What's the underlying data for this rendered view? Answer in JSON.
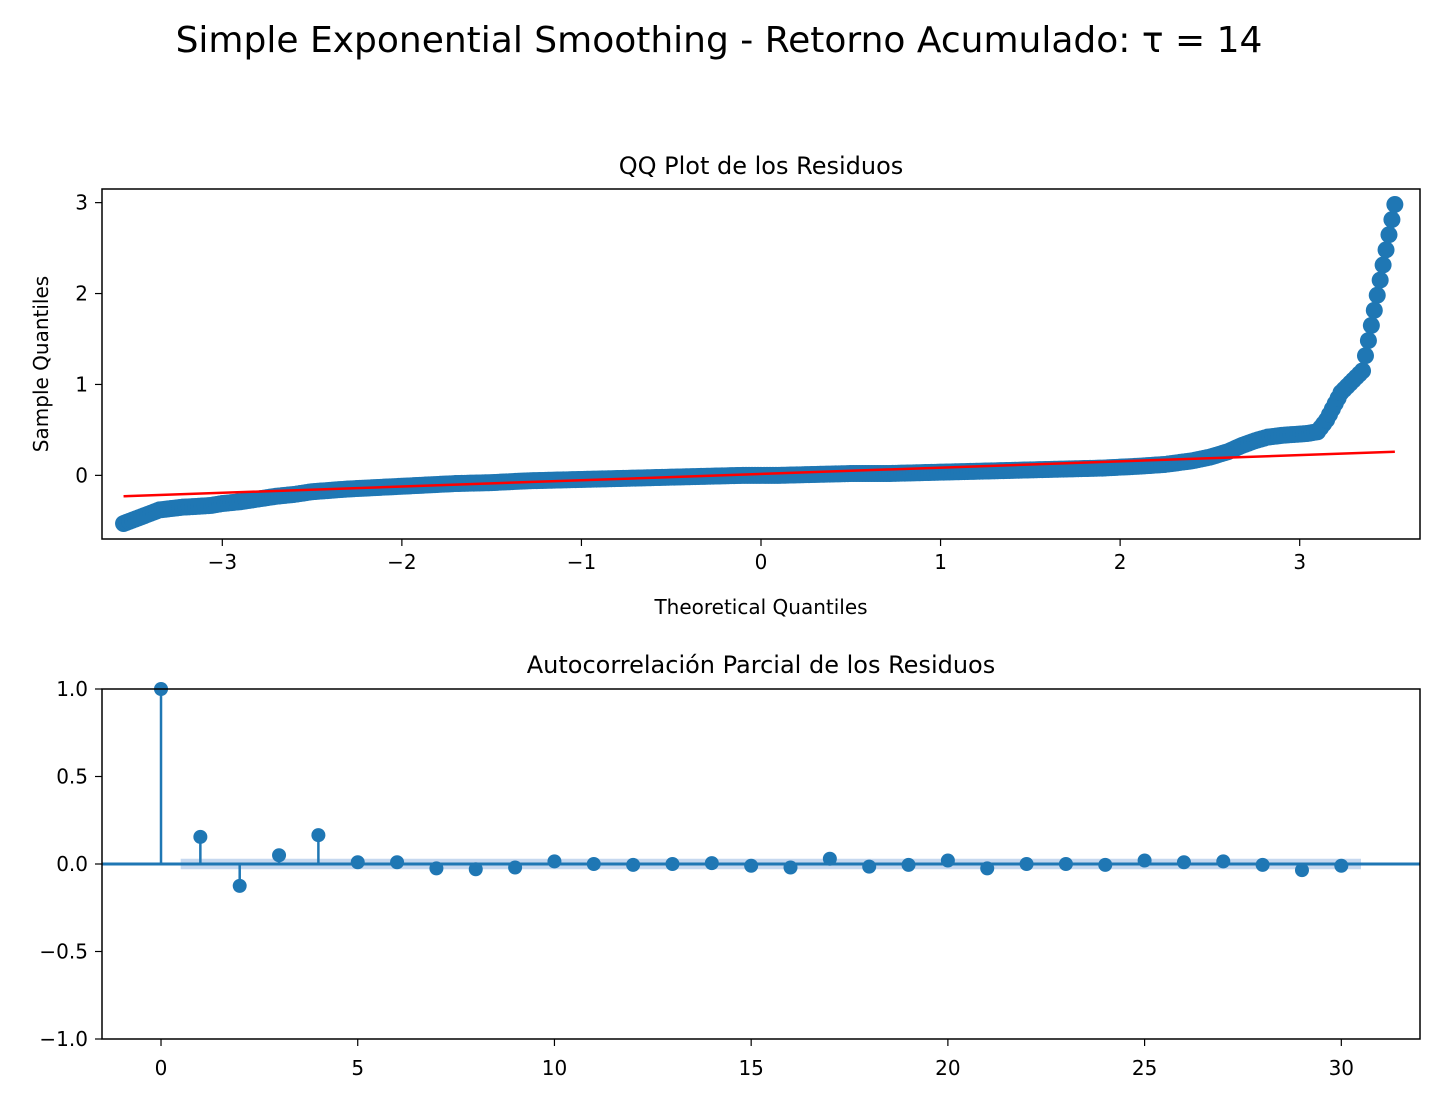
{
  "figure_title": "Simple Exponential Smoothing - Retorno Acumulado: τ = 14",
  "colors": {
    "points": "#1f77b4",
    "line": "#ff0000",
    "band": "#aec7e8"
  },
  "chart_data": [
    {
      "type": "scatter",
      "title": "QQ Plot de los Residuos",
      "xlabel": "Theoretical Quantiles",
      "ylabel": "Sample Quantiles",
      "xlim": [
        -3.67,
        3.67
      ],
      "ylim": [
        -0.7,
        3.15
      ],
      "xticks": [
        -3,
        -2,
        -1,
        0,
        1,
        2,
        3
      ],
      "xtick_labels": [
        "−3",
        "−2",
        "−1",
        "0",
        "1",
        "2",
        "3"
      ],
      "yticks": [
        0,
        1,
        2,
        3
      ],
      "ytick_labels": [
        "0",
        "1",
        "2",
        "3"
      ],
      "series": [
        {
          "points": [
            [
              -3.55,
              -0.53
            ],
            [
              -3.35,
              -0.38
            ],
            [
              -3.22,
              -0.35
            ],
            [
              -3.13,
              -0.34
            ],
            [
              -3.06,
              -0.33
            ],
            [
              -3.0,
              -0.31
            ],
            [
              -2.9,
              -0.29
            ],
            [
              -2.8,
              -0.26
            ],
            [
              -2.7,
              -0.23
            ],
            [
              -2.6,
              -0.21
            ],
            [
              -2.5,
              -0.18
            ],
            [
              -2.3,
              -0.15
            ],
            [
              -2.1,
              -0.13
            ],
            [
              -1.9,
              -0.11
            ],
            [
              -1.7,
              -0.09
            ],
            [
              -1.5,
              -0.08
            ],
            [
              -1.3,
              -0.06
            ],
            [
              -1.1,
              -0.05
            ],
            [
              -0.9,
              -0.04
            ],
            [
              -0.7,
              -0.03
            ],
            [
              -0.5,
              -0.02
            ],
            [
              -0.3,
              -0.01
            ],
            [
              -0.1,
              0.0
            ],
            [
              0.1,
              0.0
            ],
            [
              0.3,
              0.01
            ],
            [
              0.5,
              0.02
            ],
            [
              0.7,
              0.02
            ],
            [
              0.9,
              0.03
            ],
            [
              1.1,
              0.04
            ],
            [
              1.3,
              0.05
            ],
            [
              1.5,
              0.06
            ],
            [
              1.7,
              0.07
            ],
            [
              1.9,
              0.08
            ],
            [
              2.1,
              0.1
            ],
            [
              2.25,
              0.12
            ],
            [
              2.4,
              0.16
            ],
            [
              2.5,
              0.2
            ],
            [
              2.6,
              0.26
            ],
            [
              2.68,
              0.33
            ],
            [
              2.75,
              0.38
            ],
            [
              2.82,
              0.42
            ],
            [
              2.9,
              0.44
            ],
            [
              2.97,
              0.45
            ],
            [
              3.04,
              0.46
            ],
            [
              3.1,
              0.48
            ],
            [
              3.15,
              0.61
            ],
            [
              3.23,
              0.91
            ],
            [
              3.35,
              1.15
            ],
            [
              3.53,
              2.98
            ]
          ]
        }
      ],
      "reference_line": {
        "x": [
          -3.55,
          3.53
        ],
        "y": [
          -0.23,
          0.26
        ]
      }
    },
    {
      "type": "stem",
      "title": "Autocorrelación Parcial de los Residuos",
      "xlim": [
        -1.5,
        32.0
      ],
      "ylim": [
        -1.0,
        1.0
      ],
      "xticks": [
        0,
        5,
        10,
        15,
        20,
        25,
        30
      ],
      "xtick_labels": [
        "0",
        "5",
        "10",
        "15",
        "20",
        "25",
        "30"
      ],
      "yticks": [
        -1.0,
        -0.5,
        0.0,
        0.5,
        1.0
      ],
      "ytick_labels": [
        "−1.0",
        "−0.5",
        "0.0",
        "0.5",
        "1.0"
      ],
      "lags": [
        0,
        1,
        2,
        3,
        4,
        5,
        6,
        7,
        8,
        9,
        10,
        11,
        12,
        13,
        14,
        15,
        16,
        17,
        18,
        19,
        20,
        21,
        22,
        23,
        24,
        25,
        26,
        27,
        28,
        29,
        30
      ],
      "values": [
        1.0,
        0.155,
        -0.125,
        0.05,
        0.165,
        0.01,
        0.01,
        -0.025,
        -0.03,
        -0.02,
        0.015,
        0.0,
        -0.005,
        0.0,
        0.005,
        -0.01,
        -0.02,
        0.03,
        -0.015,
        -0.005,
        0.02,
        -0.025,
        0.0,
        0.0,
        -0.005,
        0.02,
        0.01,
        0.015,
        -0.005,
        -0.035,
        -0.01
      ],
      "confidence_band": [
        -0.03,
        0.03
      ]
    }
  ]
}
